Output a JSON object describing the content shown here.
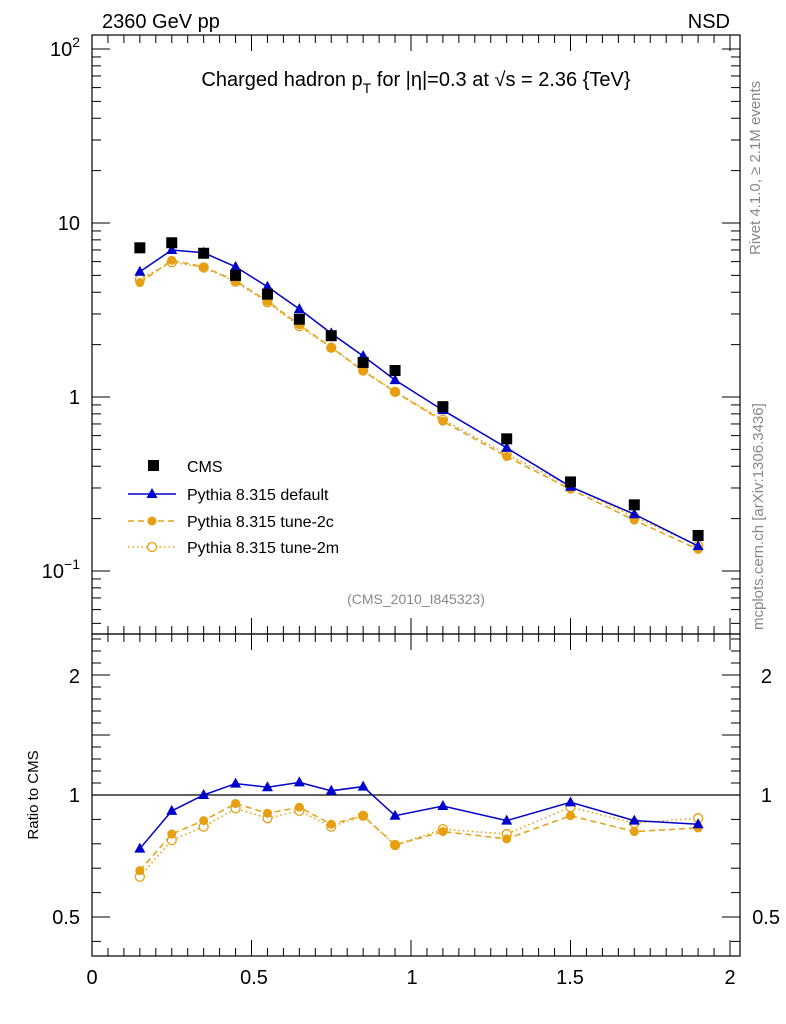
{
  "header": {
    "energy_label": "2360 GeV pp",
    "process_label": "NSD",
    "plot_title": "Charged hadron p_T for |η|=0.3 at √s = 2.36 {TeV}",
    "title_part1": "Charged hadron p",
    "title_sub": "T",
    "title_part2": " for |η|=0.3 at ",
    "title_sqrt": "√s",
    "title_part3": " = 2.36 {TeV}",
    "analysis_id": "(CMS_2010_I845323)",
    "side_text_rivet": "Rivet 4.1.0, ≥ 2.1M events",
    "side_text_mcplots": "mcplots.cern.ch [arXiv:1306.3436]"
  },
  "legend": {
    "cms": "CMS",
    "default": "Pythia 8.315 default",
    "tune2c": "Pythia 8.315 tune-2c",
    "tune2m": "Pythia 8.315 tune-2m"
  },
  "colors": {
    "data": "#000000",
    "default": "#0000cc",
    "tune2c": "#e69f10",
    "tune2m": "#e69f10"
  },
  "chart_data": [
    {
      "type": "scatter",
      "title": "Charged hadron p_T for |η|=0.3 at √s = 2.36 {TeV}",
      "xlabel": "",
      "ylabel": "",
      "xlim": [
        0,
        2.05
      ],
      "ylim": [
        0.045,
        130
      ],
      "yscale": "log",
      "ytick_labels": [
        "10^2",
        "10",
        "1",
        "10^-1"
      ],
      "x": [
        0.15,
        0.25,
        0.35,
        0.45,
        0.55,
        0.65,
        0.75,
        0.85,
        0.95,
        1.1,
        1.3,
        1.5,
        1.7,
        1.9
      ],
      "series": [
        {
          "name": "CMS",
          "marker": "square",
          "values": [
            7.2,
            7.7,
            6.7,
            5.0,
            3.9,
            2.8,
            2.25,
            1.58,
            1.42,
            0.88,
            0.575,
            0.325,
            0.24,
            0.16
          ]
        },
        {
          "name": "Pythia 8.315 default",
          "marker": "triangle",
          "values": [
            5.25,
            7.0,
            6.75,
            5.6,
            4.3,
            3.2,
            2.32,
            1.72,
            1.25,
            0.84,
            0.51,
            0.305,
            0.212,
            0.139
          ]
        },
        {
          "name": "Pythia 8.315 tune-2c",
          "marker": "circle",
          "values": [
            4.55,
            6.1,
            5.6,
            4.65,
            3.55,
            2.6,
            1.93,
            1.41,
            1.07,
            0.725,
            0.455,
            0.295,
            0.196,
            0.133
          ]
        },
        {
          "name": "Pythia 8.315 tune-2m",
          "marker": "open-circle",
          "values": [
            4.75,
            5.95,
            5.55,
            4.6,
            3.5,
            2.55,
            1.92,
            1.42,
            1.07,
            0.74,
            0.47,
            0.305,
            0.205,
            0.14
          ]
        }
      ],
      "legend_position": "lower-left"
    },
    {
      "type": "line",
      "title": "",
      "xlabel": "",
      "ylabel": "Ratio to CMS",
      "xlim": [
        0,
        2.05
      ],
      "ylim": [
        0.4,
        2.35
      ],
      "xtick_labels": [
        "0",
        "0.5",
        "1",
        "1.5",
        "2"
      ],
      "ytick_labels": [
        "0.5",
        "1",
        "2"
      ],
      "x": [
        0.15,
        0.25,
        0.35,
        0.45,
        0.55,
        0.65,
        0.75,
        0.85,
        0.95,
        1.1,
        1.3,
        1.5,
        1.7,
        1.9
      ],
      "series": [
        {
          "name": "Pythia 8.315 default",
          "marker": "triangle",
          "values": [
            0.78,
            0.935,
            1.0,
            1.095,
            1.065,
            1.105,
            1.035,
            1.07,
            0.915,
            0.955,
            0.895,
            0.97,
            0.895,
            0.88
          ]
        },
        {
          "name": "Pythia 8.315 tune-2c",
          "marker": "circle",
          "values": [
            0.69,
            0.84,
            0.895,
            0.965,
            0.925,
            0.95,
            0.88,
            0.915,
            0.795,
            0.85,
            0.82,
            0.915,
            0.85,
            0.865
          ]
        },
        {
          "name": "Pythia 8.315 tune-2m",
          "marker": "open-circle",
          "values": [
            0.665,
            0.815,
            0.87,
            0.945,
            0.905,
            0.935,
            0.87,
            0.915,
            0.795,
            0.86,
            0.84,
            0.95,
            0.885,
            0.905
          ]
        }
      ]
    }
  ]
}
